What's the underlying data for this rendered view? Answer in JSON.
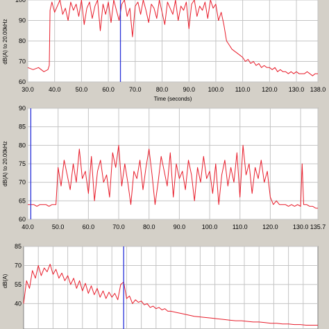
{
  "colors": {
    "series": "#e81c2a",
    "cursor": "#2a32d8",
    "grid": "#c4c4c4",
    "plot_bg": "#ffffff",
    "panel_bg": "#d4d0c8"
  },
  "chart_data": [
    {
      "type": "line",
      "title": "",
      "xlabel": "Time (seconds)",
      "ylabel": "dB(A) to 20.00kHz",
      "xlim": [
        30,
        138
      ],
      "ylim": [
        60,
        100
      ],
      "xticks": [
        "30.0",
        "40.0",
        "50.0",
        "60.0",
        "70.0",
        "80.0",
        "90.0",
        "100.0",
        "110.0",
        "120.0",
        "130.0",
        "138.0"
      ],
      "yticks": [
        "60",
        "70",
        "80",
        "90",
        "100"
      ],
      "grid": true,
      "cursor_x": 64.5,
      "series": [
        {
          "x": [
            30,
            32,
            34,
            36,
            37.5,
            38,
            38.3,
            39,
            40,
            41,
            42,
            43,
            44,
            45,
            46,
            47,
            48,
            49,
            50,
            51,
            52,
            53,
            54,
            55,
            56,
            57,
            58,
            59,
            60,
            61,
            62,
            63,
            64,
            65,
            66,
            67,
            68,
            69,
            70,
            71,
            72,
            73,
            74,
            75,
            76,
            77,
            78,
            79,
            80,
            81,
            82,
            83,
            84,
            85,
            86,
            87,
            88,
            89,
            90,
            91,
            92,
            93,
            94,
            95,
            96,
            97,
            98,
            99,
            100,
            101,
            102,
            103,
            104,
            105,
            106,
            107,
            108,
            109,
            110,
            111,
            112,
            113,
            114,
            115,
            116,
            117,
            118,
            119,
            120,
            121,
            122,
            123,
            124,
            125,
            126,
            127,
            128,
            129,
            130,
            131,
            132,
            133,
            134,
            135,
            136,
            137,
            138
          ],
          "values": [
            67,
            66,
            67,
            65,
            66,
            68,
            95,
            99,
            94,
            97,
            100,
            93,
            96,
            90,
            99,
            95,
            98,
            92,
            100,
            88,
            96,
            99,
            91,
            97,
            100,
            85,
            98,
            93,
            99,
            89,
            100,
            95,
            90,
            98,
            100,
            92,
            96,
            82,
            97,
            99,
            93,
            100,
            95,
            89,
            98,
            96,
            91,
            100,
            94,
            88,
            99,
            96,
            93,
            100,
            90,
            97,
            95,
            99,
            86,
            98,
            100,
            92,
            97,
            95,
            99,
            91,
            100,
            96,
            98,
            90,
            94,
            88,
            80,
            78,
            76,
            75,
            74,
            73,
            72,
            70,
            71,
            69,
            70,
            68,
            69,
            67,
            68,
            67,
            67,
            66,
            67,
            65,
            66,
            65,
            65,
            64,
            65,
            64,
            65,
            64,
            64,
            64,
            65,
            64,
            63,
            64,
            64
          ]
        }
      ]
    },
    {
      "type": "line",
      "title": "",
      "xlabel": "Time (seconds)",
      "ylabel": "dB(A) to 20.00kHz",
      "xlim": [
        40,
        135.7
      ],
      "ylim": [
        60,
        90
      ],
      "xticks": [
        "40.0",
        "50.0",
        "60.0",
        "70.0",
        "80.0",
        "90.0",
        "100.0",
        "110.0",
        "120.0",
        "130.0",
        "135.7"
      ],
      "yticks": [
        "60",
        "65",
        "70",
        "75",
        "80",
        "85",
        "90"
      ],
      "grid": true,
      "cursor_x": 41,
      "series": [
        {
          "x": [
            40,
            41,
            42,
            43,
            44,
            45,
            46,
            47,
            48,
            49,
            49.3,
            50,
            51,
            52,
            53,
            54,
            55,
            56,
            57,
            58,
            59,
            60,
            61,
            62,
            63,
            64,
            65,
            66,
            67,
            68,
            69,
            70,
            71,
            72,
            73,
            74,
            75,
            76,
            77,
            78,
            79,
            80,
            81,
            82,
            83,
            84,
            85,
            86,
            87,
            88,
            89,
            90,
            91,
            92,
            93,
            94,
            95,
            96,
            97,
            98,
            99,
            100,
            101,
            102,
            103,
            104,
            105,
            106,
            107,
            108,
            109,
            110,
            111,
            112,
            113,
            114,
            115,
            116,
            117,
            118,
            119,
            120,
            121,
            122,
            123,
            124,
            125,
            126,
            127,
            128,
            129,
            130,
            130.5,
            131,
            132,
            133,
            134,
            135,
            135.7
          ],
          "values": [
            64,
            64,
            64,
            63.5,
            64,
            64,
            64,
            63.5,
            64,
            64,
            64,
            74,
            69,
            76,
            72,
            68,
            75,
            70,
            79,
            71,
            73,
            67,
            77,
            65,
            73,
            76,
            70,
            72,
            66,
            78,
            74,
            80,
            69,
            75,
            70,
            64,
            73,
            71,
            76,
            68,
            74,
            79,
            72,
            64,
            70,
            77,
            73,
            69,
            78,
            66,
            75,
            71,
            73,
            68,
            76,
            72,
            65,
            74,
            70,
            77,
            71,
            73,
            67,
            75,
            64,
            72,
            76,
            69,
            74,
            70,
            78,
            66,
            80,
            72,
            75,
            67,
            74,
            71,
            76,
            70,
            73,
            66,
            64,
            65,
            64,
            64,
            64,
            63.5,
            64,
            63.5,
            64,
            63.5,
            75,
            64,
            64,
            63.5,
            63.5,
            63,
            63
          ]
        }
      ]
    },
    {
      "type": "line",
      "title": "",
      "xlabel": "",
      "ylabel": "dB(A)",
      "xlim": [
        0,
        100
      ],
      "ylim": [
        20,
        85
      ],
      "xticks": [],
      "yticks": [
        "85",
        "70",
        "55",
        "40"
      ],
      "grid": true,
      "cursor_x": 34,
      "series": [
        {
          "x": [
            0,
            1,
            2,
            3,
            4,
            5,
            6,
            7,
            8,
            9,
            10,
            11,
            12,
            13,
            14,
            15,
            16,
            17,
            18,
            19,
            20,
            21,
            22,
            23,
            24,
            25,
            26,
            27,
            28,
            29,
            30,
            31,
            32,
            33,
            34,
            35,
            36,
            37,
            38,
            39,
            40,
            41,
            42,
            43,
            44,
            45,
            46,
            47,
            48,
            49,
            50,
            52,
            54,
            56,
            58,
            60,
            62,
            64,
            66,
            68,
            70,
            72,
            74,
            76,
            78,
            80,
            82,
            84,
            86,
            88,
            90,
            92,
            94,
            96,
            98,
            100
          ],
          "values": [
            40,
            58,
            52,
            66,
            60,
            70,
            62,
            68,
            65,
            71,
            63,
            67,
            60,
            64,
            58,
            62,
            55,
            60,
            52,
            58,
            50,
            56,
            48,
            54,
            47,
            52,
            45,
            50,
            44,
            49,
            45,
            48,
            43,
            55,
            57,
            44,
            46,
            40,
            43,
            41,
            42,
            39,
            40,
            37,
            38,
            36,
            37,
            35,
            36,
            34,
            34,
            33,
            32,
            31,
            30,
            29.5,
            29,
            28.5,
            28,
            27.5,
            27,
            26.5,
            26.5,
            26,
            25.5,
            25.5,
            25,
            24.5,
            24.5,
            24,
            24,
            23.5,
            23.5,
            23,
            23,
            23
          ]
        }
      ]
    }
  ]
}
